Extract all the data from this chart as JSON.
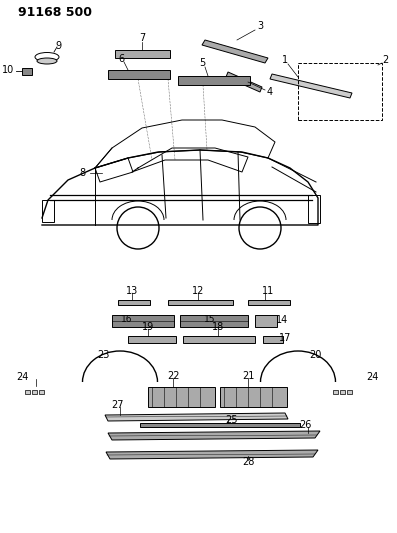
{
  "title": "91168 500",
  "bg_color": "#ffffff",
  "line_color": "#000000",
  "label_color": "#000000",
  "fig_width": 3.97,
  "fig_height": 5.33,
  "dpi": 100
}
